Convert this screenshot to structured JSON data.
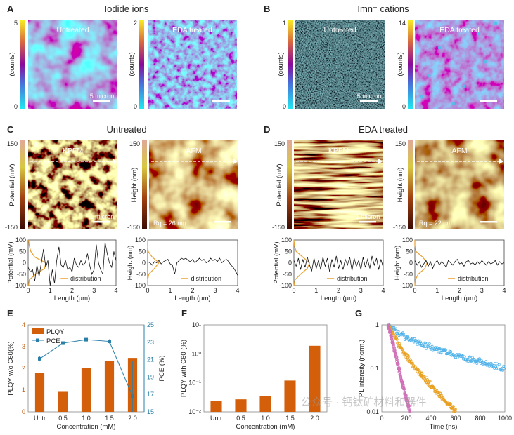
{
  "panels": {
    "A": {
      "label": "A",
      "title": "Iodide ions",
      "left_overlay": "Untreated",
      "right_overlay": "EDA treated",
      "left_cbar": [
        "5",
        "0"
      ],
      "right_cbar": [
        "2",
        "0"
      ],
      "cbar_label": "(counts)",
      "scale_label": "5 micron"
    },
    "B": {
      "label": "B",
      "title": "Imn⁺ cations",
      "left_overlay": "Untreated",
      "right_overlay": "EDA treated",
      "left_cbar": [
        "1",
        "0"
      ],
      "right_cbar": [
        "14",
        "0"
      ],
      "cbar_label": "(counts)",
      "scale_label": "5 micron"
    },
    "C": {
      "label": "C",
      "title": "Untreated",
      "kpfm": "KPFM",
      "afm": "AFM",
      "cbar": [
        "150",
        "-150"
      ],
      "kpfm_cbar_label": "Potential (mV)",
      "afm_cbar_label": "Height (nm)",
      "scale_label": "1 micron",
      "rq": "Rq = 26 nm"
    },
    "D": {
      "label": "D",
      "title": "EDA treated",
      "kpfm": "KPFM",
      "afm": "AFM",
      "cbar": [
        "150",
        "-150"
      ],
      "kpfm_cbar_label": "Potential (mV)",
      "afm_cbar_label": "Height (nm)",
      "scale_label": "1 micron",
      "rq": "Rq = 22 nm"
    },
    "E": {
      "label": "E"
    },
    "F": {
      "label": "F"
    },
    "G": {
      "label": "G"
    }
  },
  "colors": {
    "bar": "#d35f0a",
    "pce": "#2a7fa8",
    "dist": "#e8a030",
    "blue": "#4ab0e8",
    "orange": "#e8a020",
    "pink": "#d070b8"
  },
  "watermark": "公众号 · 钙钛矿材料和器件",
  "chart_data": [
    {
      "id": "C-kpfm-profile",
      "type": "line",
      "xlabel": "Length (µm)",
      "ylabel": "Potential (mV)",
      "xlim": [
        0,
        4
      ],
      "ylim": [
        -100,
        100
      ],
      "xticks": [
        "0",
        "1",
        "2",
        "3",
        "4"
      ],
      "yticks": [
        "100",
        "50",
        "0",
        "-50",
        "-100"
      ],
      "legend": "distribution",
      "x_step": 0.1,
      "values": [
        -20,
        -40,
        -30,
        -80,
        -10,
        -60,
        0,
        60,
        -20,
        10,
        -100,
        -30,
        -90,
        10,
        70,
        -10,
        -20,
        10,
        -30,
        -20,
        -40,
        20,
        -10,
        -20,
        10,
        -10,
        0,
        40,
        -10,
        -50,
        -30,
        80,
        0,
        -30,
        -50,
        90,
        40,
        0,
        -20,
        50,
        10
      ],
      "distribution": {
        "y": [
          -100,
          -75,
          -50,
          -25,
          0,
          25,
          50,
          75,
          100
        ],
        "x": [
          0.02,
          0.05,
          0.35,
          0.75,
          0.8,
          0.3,
          0.12,
          0.05,
          0.02
        ]
      }
    },
    {
      "id": "C-afm-profile",
      "type": "line",
      "xlabel": "Length (µm)",
      "ylabel": "Height (nm)",
      "xlim": [
        0,
        4
      ],
      "ylim": [
        -100,
        100
      ],
      "xticks": [
        "0",
        "1",
        "2",
        "3",
        "4"
      ],
      "yticks": [
        "100",
        "50",
        "0",
        "-50",
        "-100"
      ],
      "legend": "distribution",
      "x_step": 0.1,
      "values": [
        5,
        0,
        -10,
        5,
        0,
        10,
        -5,
        5,
        10,
        15,
        -5,
        -10,
        -50,
        0,
        10,
        20,
        15,
        20,
        10,
        5,
        15,
        0,
        10,
        20,
        10,
        15,
        0,
        5,
        20,
        10,
        15,
        5,
        20,
        0,
        10,
        15,
        5,
        -10,
        -20,
        -35,
        -55
      ],
      "distribution": {
        "y": [
          -100,
          -75,
          -50,
          -25,
          0,
          25,
          50,
          75,
          100
        ],
        "x": [
          0,
          0,
          0.05,
          0.3,
          0.5,
          0.2,
          0.02,
          0,
          0
        ]
      }
    },
    {
      "id": "D-kpfm-profile",
      "type": "line",
      "xlabel": "Length (µm)",
      "ylabel": "Potential (mV)",
      "xlim": [
        0,
        4
      ],
      "ylim": [
        -100,
        100
      ],
      "xticks": [
        "0",
        "1",
        "2",
        "3",
        "4"
      ],
      "yticks": [
        "100",
        "50",
        "0",
        "-50",
        "-100"
      ],
      "legend": "distribution",
      "x_step": 0.1,
      "values": [
        10,
        -15,
        20,
        -30,
        15,
        -20,
        25,
        -10,
        -35,
        20,
        -25,
        10,
        -30,
        25,
        -15,
        20,
        -40,
        15,
        -20,
        30,
        -25,
        10,
        -30,
        15,
        -10,
        25,
        -35,
        20,
        -15,
        10,
        -30,
        25,
        -20,
        15,
        -25,
        30,
        -10,
        20,
        -30,
        15,
        -20
      ],
      "distribution": {
        "y": [
          -100,
          -75,
          -50,
          -25,
          0,
          25,
          50,
          75,
          100
        ],
        "x": [
          0,
          0.05,
          0.3,
          0.6,
          0.7,
          0.4,
          0.1,
          0.02,
          0
        ]
      }
    },
    {
      "id": "D-afm-profile",
      "type": "line",
      "xlabel": "Length (µm)",
      "ylabel": "Height (nm)",
      "xlim": [
        0,
        4
      ],
      "ylim": [
        -100,
        100
      ],
      "xticks": [
        "0",
        "1",
        "2",
        "3",
        "4"
      ],
      "yticks": [
        "100",
        "50",
        "0",
        "-50",
        "-100"
      ],
      "legend": "distribution",
      "x_step": 0.1,
      "values": [
        10,
        -10,
        5,
        -20,
        -5,
        10,
        -15,
        5,
        -25,
        0,
        10,
        -10,
        5,
        -5,
        -20,
        10,
        0,
        -10,
        5,
        15,
        -5,
        0,
        -15,
        5,
        10,
        -5,
        0,
        -10,
        5,
        -5,
        10,
        0,
        -10,
        5,
        -5,
        0,
        10,
        -10,
        5,
        -5,
        0
      ],
      "distribution": {
        "y": [
          -100,
          -75,
          -50,
          -25,
          0,
          25,
          50,
          75,
          100
        ],
        "x": [
          0,
          0.02,
          0.15,
          0.45,
          0.55,
          0.35,
          0.05,
          0,
          0
        ]
      }
    },
    {
      "id": "E",
      "type": "bar",
      "xlabel": "Concentration (mM)",
      "ylabel": "PLQY w/o C60(%)",
      "y2label": "PCE (%)",
      "categories": [
        "Untr",
        "0.5",
        "1.0",
        "1.5",
        "2.0"
      ],
      "ylim": [
        0,
        4
      ],
      "yticks": [
        "0",
        "1",
        "2",
        "3",
        "4"
      ],
      "y2lim": [
        15,
        25
      ],
      "y2ticks": [
        "15",
        "17",
        "19",
        "21",
        "23",
        "25"
      ],
      "legend": "top-left",
      "series": [
        {
          "name": "PLQY",
          "type": "bar",
          "values": [
            1.78,
            0.92,
            2.0,
            2.33,
            2.48
          ]
        },
        {
          "name": "PCE",
          "type": "line",
          "axis": "right",
          "values": [
            21.1,
            22.9,
            23.3,
            23.1,
            16.8
          ],
          "errors": [
            0.3,
            0.25,
            0.25,
            0.25,
            4.0
          ]
        }
      ]
    },
    {
      "id": "F",
      "type": "bar",
      "xlabel": "Concentration (mM)",
      "ylabel": "PLQY with C60 (%)",
      "categories": [
        "Untr",
        "0.5",
        "1.0",
        "1.5",
        "2.0"
      ],
      "yscale": "log",
      "ylim": [
        0.01,
        10
      ],
      "yticks": [
        "10⁻²",
        "10⁻¹",
        "10⁰",
        "10¹"
      ],
      "values": [
        0.024,
        0.027,
        0.035,
        0.12,
        1.9
      ]
    },
    {
      "id": "G",
      "type": "scatter",
      "xlabel": "Time (ns)",
      "ylabel": "PL intensity (norm.)",
      "yscale": "log",
      "xlim": [
        0,
        1000
      ],
      "ylim": [
        0.01,
        1
      ],
      "xticks": [
        "0",
        "200",
        "400",
        "600",
        "800",
        "1000"
      ],
      "yticks": [
        "0.01",
        "0.1",
        "1"
      ],
      "series": [
        {
          "color": "blue",
          "x": [
            50,
            200,
            400,
            600,
            800,
            1000
          ],
          "y": [
            1,
            0.5,
            0.3,
            0.2,
            0.14,
            0.1
          ]
        },
        {
          "color": "orange",
          "x": [
            50,
            150,
            250,
            400,
            500,
            600
          ],
          "y": [
            1,
            0.3,
            0.12,
            0.04,
            0.02,
            0.01
          ]
        },
        {
          "color": "pink",
          "x": [
            50,
            100,
            150,
            200,
            230
          ],
          "y": [
            1,
            0.3,
            0.07,
            0.02,
            0.01
          ]
        }
      ]
    }
  ]
}
